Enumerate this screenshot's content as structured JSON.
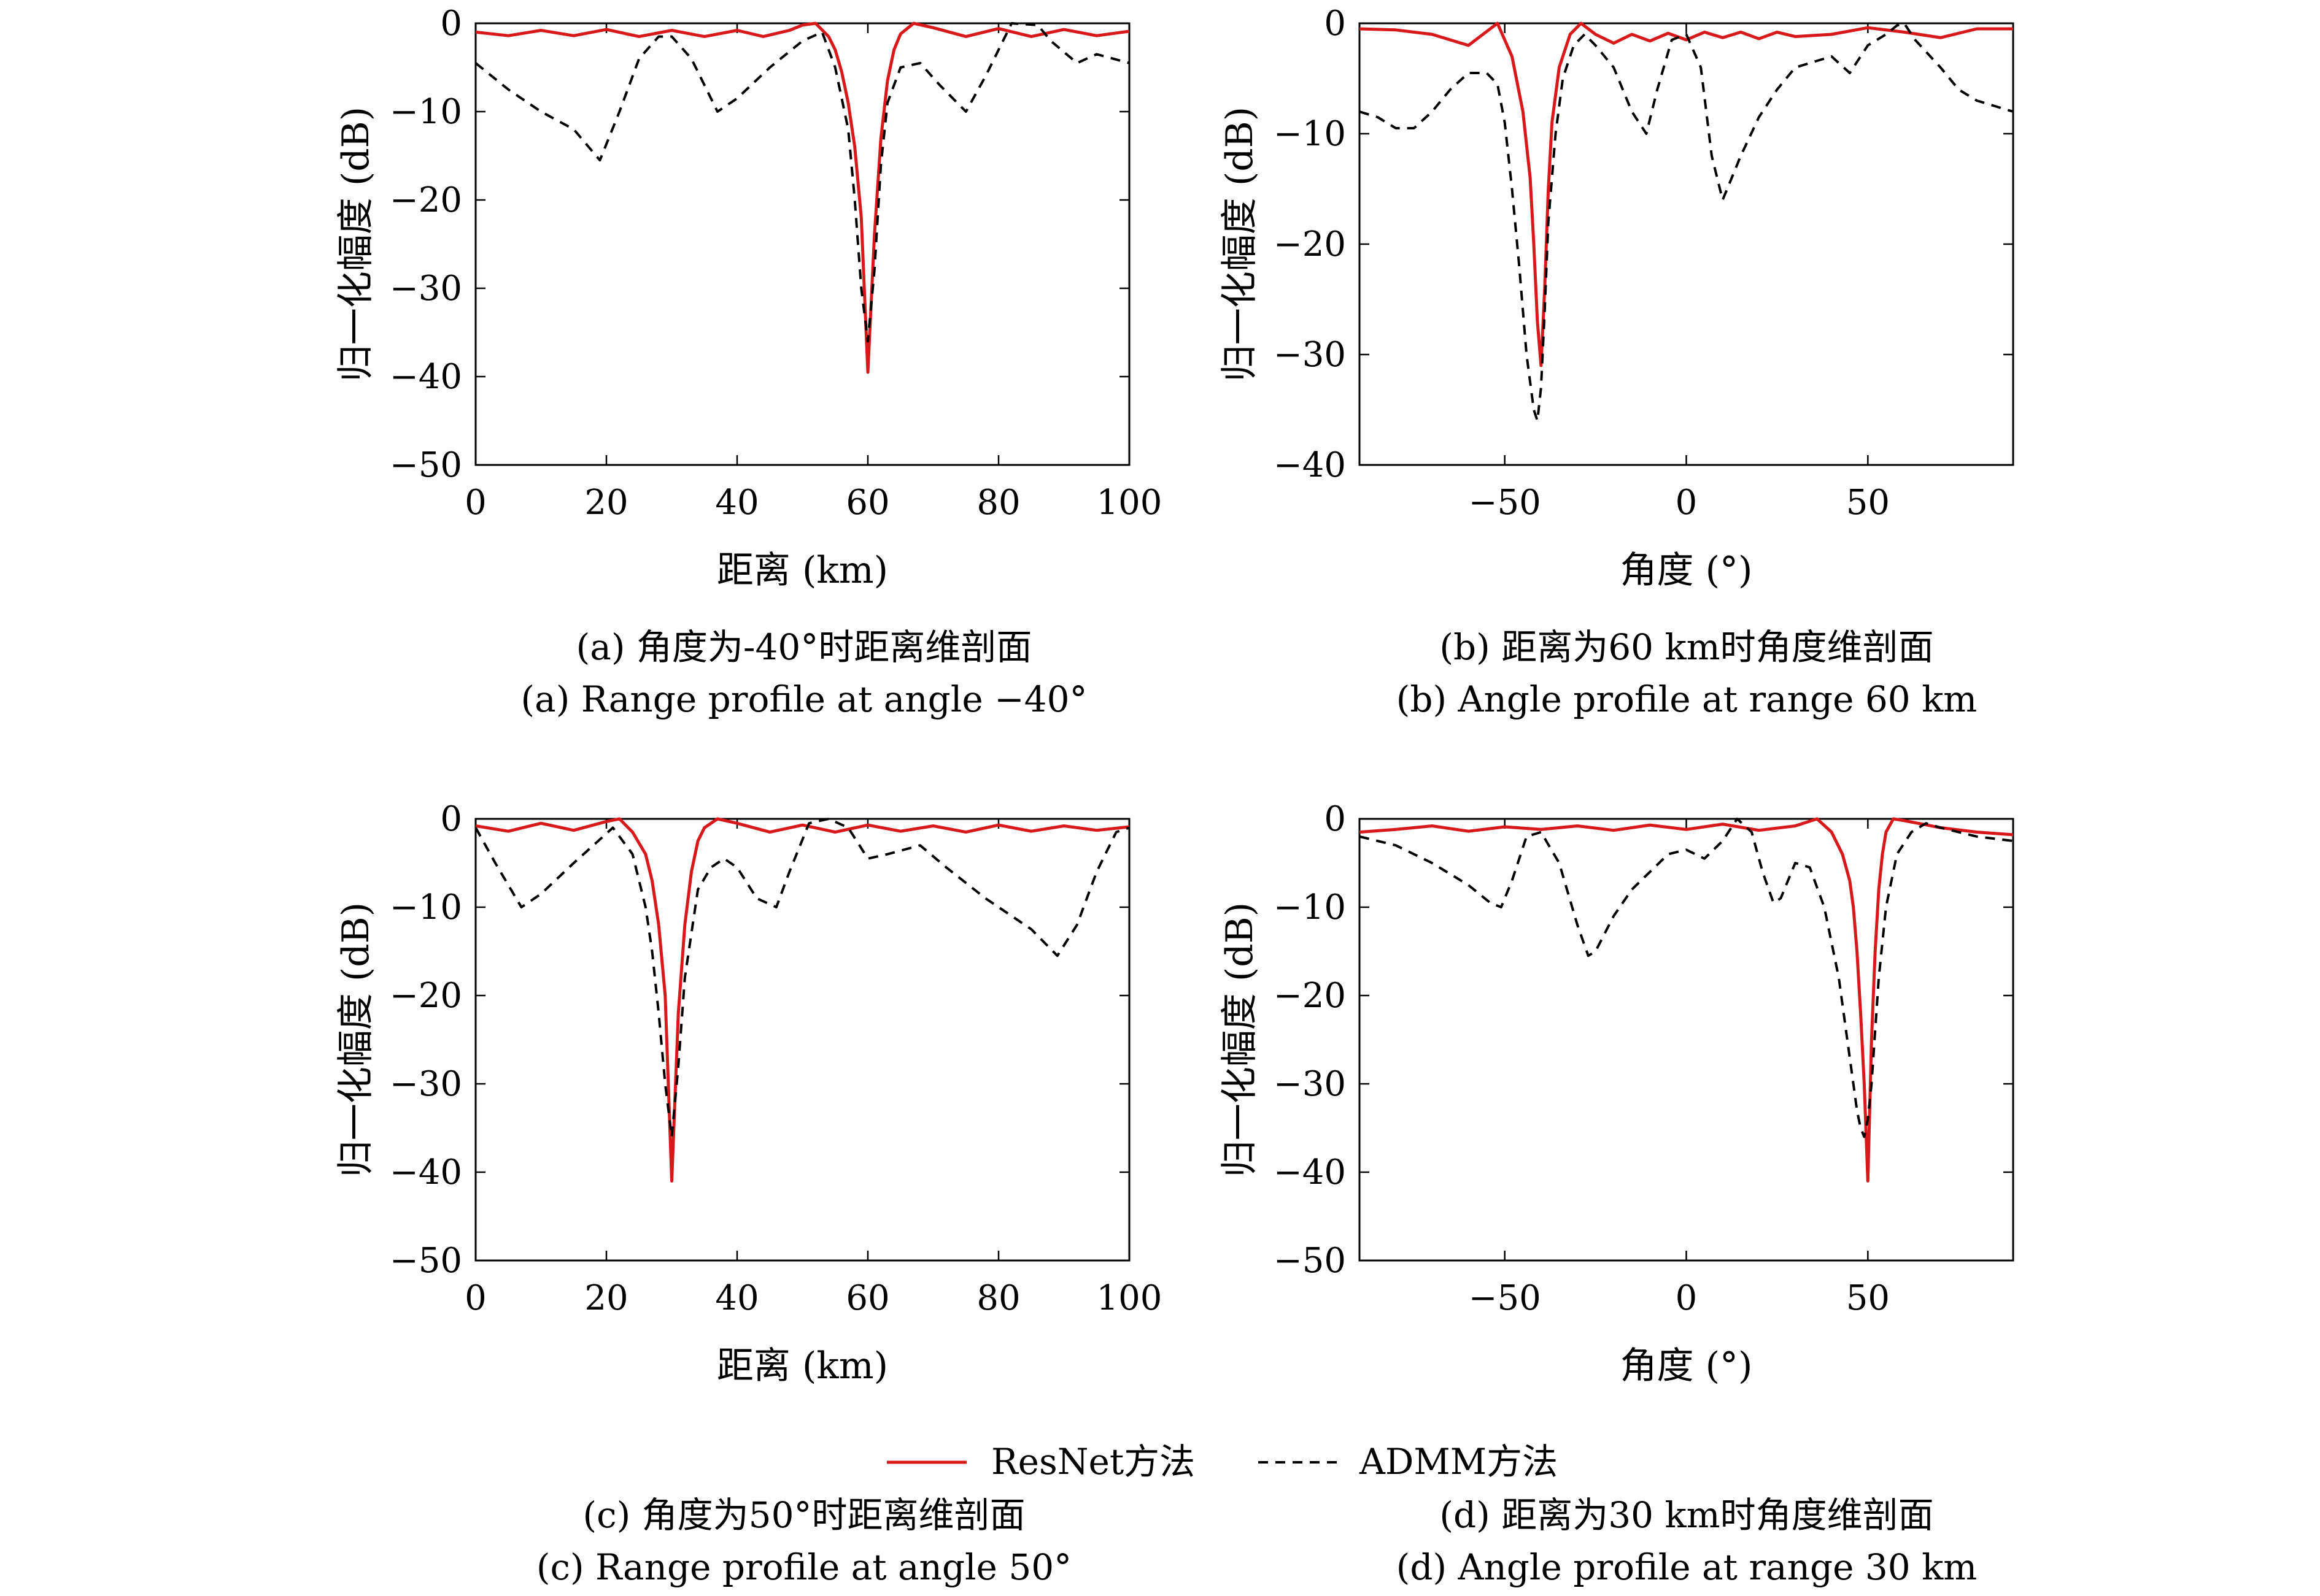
{
  "chart_data": [
    {
      "type": "line",
      "caption_cn": "(a) 角度为-40°时距离维剖面",
      "caption_en": "(a) Range profile at angle −40°",
      "xlabel": "距离 (km)",
      "ylabel": "归一化幅度 (dB)",
      "xlim": [
        0,
        100
      ],
      "ylim": [
        -50,
        0
      ],
      "xticks": [
        0,
        20,
        40,
        60,
        80,
        100
      ],
      "yticks": [
        0,
        -10,
        -20,
        -30,
        -40,
        -50
      ],
      "series": [
        {
          "name": "ResNet方法",
          "color": "#d7191c",
          "dash": "solid",
          "x": [
            0,
            5,
            10,
            15,
            20,
            25,
            30,
            35,
            40,
            44,
            48,
            50,
            52,
            54,
            55,
            56,
            57,
            58,
            59,
            60,
            61,
            62,
            63,
            64,
            65,
            67,
            70,
            75,
            80,
            85,
            90,
            95,
            100
          ],
          "y": [
            -1.0,
            -1.4,
            -0.8,
            -1.4,
            -0.7,
            -1.5,
            -0.8,
            -1.5,
            -0.8,
            -1.5,
            -0.8,
            -0.2,
            0,
            -1.5,
            -3,
            -5.5,
            -9,
            -14,
            -22,
            -39.5,
            -24,
            -13,
            -6.5,
            -3,
            -1.2,
            0,
            -0.5,
            -1.5,
            -0.6,
            -1.5,
            -0.7,
            -1.4,
            -0.9
          ]
        },
        {
          "name": "ADMM方法",
          "color": "#000000",
          "dash": "dashed",
          "x": [
            0,
            5,
            10,
            15,
            19,
            22,
            25,
            28,
            30,
            33,
            37,
            40,
            45,
            50,
            53,
            55,
            57,
            58,
            59,
            60,
            61,
            62,
            63,
            65,
            68,
            71,
            75,
            78,
            82,
            86,
            88,
            92,
            95,
            100
          ],
          "y": [
            -4.5,
            -7.5,
            -10,
            -12,
            -15.5,
            -10,
            -4,
            -1.5,
            -1.5,
            -4,
            -10,
            -8.5,
            -5,
            -2,
            -1,
            -5,
            -12,
            -20,
            -30,
            -36,
            -28,
            -16,
            -9,
            -5,
            -4.5,
            -7,
            -10,
            -6,
            0,
            -0.2,
            -2,
            -4.5,
            -3.5,
            -4.5
          ]
        }
      ]
    },
    {
      "type": "line",
      "caption_cn": "(b) 距离为60 km时角度维剖面",
      "caption_en": "(b) Angle profile at range 60 km",
      "xlabel": "角度 (°)",
      "ylabel": "归一化幅度 (dB)",
      "xlim": [
        -90,
        90
      ],
      "ylim": [
        -40,
        0
      ],
      "xticks": [
        -50,
        0,
        50
      ],
      "xtick_labels": [
        "−50",
        "0",
        "50"
      ],
      "yticks": [
        0,
        -10,
        -20,
        -30,
        -40
      ],
      "series": [
        {
          "name": "ResNet方法",
          "color": "#d7191c",
          "dash": "solid",
          "x": [
            -90,
            -80,
            -70,
            -60,
            -52,
            -48,
            -45,
            -43,
            -42,
            -41,
            -40,
            -39,
            -38,
            -37,
            -35,
            -32,
            -29,
            -25,
            -20,
            -15,
            -10,
            -5,
            0,
            5,
            10,
            15,
            20,
            25,
            30,
            40,
            50,
            60,
            70,
            80,
            90
          ],
          "y": [
            -0.5,
            -0.6,
            -1.0,
            -2.0,
            0,
            -3,
            -8,
            -14,
            -20,
            -27,
            -31,
            -24,
            -15,
            -9,
            -4,
            -1,
            0,
            -1.0,
            -1.8,
            -1.0,
            -1.6,
            -0.9,
            -1.5,
            -0.8,
            -1.3,
            -0.8,
            -1.4,
            -0.8,
            -1.2,
            -1.0,
            -0.4,
            -0.8,
            -1.3,
            -0.5,
            -0.5
          ]
        },
        {
          "name": "ADMM方法",
          "color": "#000000",
          "dash": "dashed",
          "x": [
            -90,
            -85,
            -80,
            -75,
            -70,
            -65,
            -60,
            -55,
            -52,
            -50,
            -48,
            -46,
            -44,
            -42,
            -41,
            -40,
            -39,
            -38,
            -36,
            -34,
            -31,
            -28,
            -25,
            -20,
            -15,
            -11,
            -8,
            -4,
            0,
            4,
            7,
            10,
            15,
            20,
            25,
            30,
            35,
            40,
            45,
            50,
            55,
            58,
            60,
            63,
            70,
            75,
            80,
            85,
            90
          ],
          "y": [
            -8,
            -8.5,
            -9.5,
            -9.5,
            -8,
            -6,
            -4.5,
            -4.5,
            -5.5,
            -9,
            -15,
            -22,
            -30,
            -35,
            -36,
            -33,
            -26,
            -18,
            -10,
            -5,
            -2,
            -1,
            -2,
            -4,
            -8,
            -10,
            -6,
            -1.5,
            -1,
            -4,
            -12,
            -16,
            -12,
            -8.5,
            -6,
            -4,
            -3.5,
            -3,
            -4.5,
            -2,
            -1,
            -0.2,
            0,
            -1.5,
            -4,
            -6,
            -7,
            -7.5,
            -8
          ]
        }
      ]
    },
    {
      "type": "line",
      "caption_cn": "(c) 角度为50°时距离维剖面",
      "caption_en": "(c) Range profile at angle 50°",
      "xlabel": "距离 (km)",
      "ylabel": "归一化幅度 (dB)",
      "xlim": [
        0,
        100
      ],
      "ylim": [
        -50,
        0
      ],
      "xticks": [
        0,
        20,
        40,
        60,
        80,
        100
      ],
      "yticks": [
        0,
        -10,
        -20,
        -30,
        -40,
        -50
      ],
      "series": [
        {
          "name": "ResNet方法",
          "color": "#d7191c",
          "dash": "solid",
          "x": [
            0,
            5,
            10,
            15,
            20,
            22,
            24,
            26,
            27,
            28,
            29,
            30,
            31,
            32,
            33,
            34,
            35,
            37,
            40,
            45,
            50,
            55,
            60,
            65,
            70,
            75,
            80,
            85,
            90,
            95,
            100
          ],
          "y": [
            -0.8,
            -1.4,
            -0.5,
            -1.3,
            -0.3,
            0,
            -1.5,
            -4,
            -7,
            -12,
            -20,
            -41,
            -22,
            -12,
            -6,
            -2.5,
            -1,
            0,
            -0.5,
            -1.5,
            -0.7,
            -1.5,
            -0.7,
            -1.4,
            -0.8,
            -1.5,
            -0.7,
            -1.4,
            -0.8,
            -1.3,
            -0.9
          ]
        },
        {
          "name": "ADMM方法",
          "color": "#000000",
          "dash": "dashed",
          "x": [
            0,
            3,
            7,
            10,
            15,
            18,
            21,
            24,
            26,
            27,
            28,
            29,
            30,
            31,
            32,
            34,
            36,
            38,
            40,
            43,
            46,
            48,
            51,
            54,
            57,
            60,
            63,
            68,
            72,
            78,
            85,
            89,
            92,
            95,
            98,
            100
          ],
          "y": [
            -1,
            -5,
            -10,
            -8.5,
            -5,
            -3,
            -1,
            -4,
            -10,
            -15,
            -22,
            -30,
            -36,
            -28,
            -18,
            -8,
            -5.5,
            -4.5,
            -5.5,
            -9,
            -10,
            -6,
            -0.5,
            0,
            -1,
            -4.5,
            -4,
            -3,
            -5.5,
            -9,
            -12.5,
            -15.5,
            -12,
            -6,
            -1.5,
            -1
          ]
        }
      ]
    },
    {
      "type": "line",
      "caption_cn": "(d) 距离为30 km时角度维剖面",
      "caption_en": "(d) Angle profile at range 30 km",
      "xlabel": "角度 (°)",
      "ylabel": "归一化幅度 (dB)",
      "xlim": [
        -90,
        90
      ],
      "ylim": [
        -50,
        0
      ],
      "xticks": [
        -50,
        0,
        50
      ],
      "xtick_labels": [
        "−50",
        "0",
        "50"
      ],
      "yticks": [
        0,
        -10,
        -20,
        -30,
        -40,
        -50
      ],
      "series": [
        {
          "name": "ResNet方法",
          "color": "#d7191c",
          "dash": "solid",
          "x": [
            -90,
            -80,
            -70,
            -60,
            -50,
            -40,
            -30,
            -20,
            -10,
            0,
            10,
            20,
            30,
            36,
            40,
            43,
            45,
            46,
            47,
            48,
            49,
            50,
            51,
            52,
            53,
            54,
            55,
            57,
            60,
            65,
            70,
            80,
            90
          ],
          "y": [
            -1.5,
            -1.2,
            -0.8,
            -1.4,
            -0.9,
            -1.2,
            -0.8,
            -1.3,
            -0.7,
            -1.2,
            -0.6,
            -1.3,
            -0.8,
            0,
            -1.5,
            -4,
            -7,
            -10,
            -15,
            -22,
            -30,
            -41,
            -25,
            -15,
            -8,
            -4,
            -1.5,
            0,
            -0.2,
            -0.6,
            -1.0,
            -1.5,
            -1.8
          ]
        },
        {
          "name": "ADMM方法",
          "color": "#000000",
          "dash": "dashed",
          "x": [
            -90,
            -80,
            -70,
            -60,
            -54,
            -51,
            -48,
            -44,
            -40,
            -35,
            -30,
            -27,
            -25,
            -20,
            -15,
            -10,
            -5,
            0,
            5,
            10,
            14,
            18,
            21,
            24,
            26,
            30,
            34,
            38,
            42,
            44,
            46,
            47,
            48,
            49,
            50,
            51,
            52,
            53,
            55,
            58,
            62,
            66,
            70,
            80,
            90
          ],
          "y": [
            -2,
            -3,
            -5,
            -7.5,
            -9.5,
            -10,
            -7,
            -2,
            -1.5,
            -5,
            -12,
            -15.5,
            -15,
            -11,
            -8,
            -6,
            -4,
            -3.5,
            -4.5,
            -2.5,
            0,
            -1.5,
            -6,
            -9.5,
            -9,
            -5,
            -5.5,
            -10,
            -18,
            -24,
            -30,
            -33,
            -35,
            -36,
            -34,
            -30,
            -24,
            -18,
            -10,
            -4,
            -1.5,
            -0.5,
            -1,
            -2,
            -2.5
          ]
        }
      ]
    }
  ],
  "legend": {
    "items": [
      {
        "label": "ResNet方法",
        "color": "#d7191c",
        "dash": "solid"
      },
      {
        "label": "ADMM方法",
        "color": "#000000",
        "dash": "dashed"
      }
    ]
  }
}
